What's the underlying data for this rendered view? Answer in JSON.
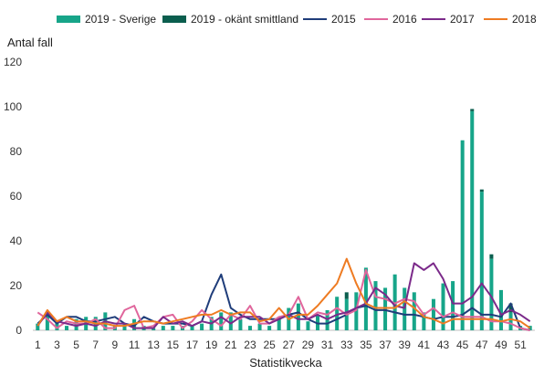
{
  "chart_data": {
    "type": "bar+line",
    "ylabel": "Antal fall",
    "xlabel": "Statistikvecka",
    "ylim": [
      0,
      120
    ],
    "yticks": [
      0,
      20,
      40,
      60,
      80,
      100,
      120
    ],
    "xticks": [
      1,
      3,
      5,
      7,
      9,
      11,
      13,
      15,
      17,
      19,
      21,
      23,
      25,
      27,
      29,
      31,
      33,
      35,
      37,
      39,
      41,
      43,
      45,
      47,
      49,
      51
    ],
    "x": [
      1,
      2,
      3,
      4,
      5,
      6,
      7,
      8,
      9,
      10,
      11,
      12,
      13,
      14,
      15,
      16,
      17,
      18,
      19,
      20,
      21,
      22,
      23,
      24,
      25,
      26,
      27,
      28,
      29,
      30,
      31,
      32,
      33,
      34,
      35,
      36,
      37,
      38,
      39,
      40,
      41,
      42,
      43,
      44,
      45,
      46,
      47,
      48,
      49,
      50,
      51,
      52
    ],
    "legend_position": "top",
    "bar_series": [
      {
        "name": "2019 - Sverige",
        "color": "#17a589",
        "values": [
          3,
          8,
          4,
          2,
          5,
          6,
          6,
          8,
          2,
          3,
          5,
          2,
          1,
          2,
          2,
          2,
          2,
          3,
          6,
          8,
          8,
          5,
          2,
          3,
          2,
          6,
          10,
          12,
          4,
          7,
          9,
          15,
          14,
          17,
          28,
          22,
          19,
          25,
          19,
          17,
          8,
          14,
          21,
          22,
          85,
          98,
          62,
          32,
          18,
          8,
          2,
          2
        ]
      },
      {
        "name": "2019 - okänt smittland",
        "color": "#0b5e4e",
        "values": [
          0,
          0,
          0,
          0,
          0,
          0,
          0,
          0,
          0,
          0,
          0,
          0,
          0,
          0,
          0,
          0,
          0,
          0,
          0,
          0,
          0,
          0,
          0,
          0,
          0,
          0,
          0,
          0,
          0,
          0,
          0,
          0,
          3,
          0,
          0,
          0,
          0,
          0,
          0,
          0,
          0,
          0,
          0,
          0,
          0,
          1,
          1,
          2,
          0,
          4,
          0,
          0
        ]
      }
    ],
    "line_series": [
      {
        "name": "2015",
        "color": "#1f3d7a",
        "values": [
          3,
          7,
          3,
          6,
          6,
          4,
          4,
          5,
          6,
          3,
          2,
          6,
          4,
          3,
          3,
          3,
          2,
          4,
          16,
          25,
          10,
          7,
          5,
          5,
          5,
          5,
          7,
          8,
          5,
          3,
          3,
          5,
          7,
          10,
          11,
          9,
          9,
          8,
          7,
          7,
          6,
          5,
          6,
          6,
          7,
          10,
          7,
          7,
          6,
          12,
          1,
          0
        ]
      },
      {
        "name": "2016",
        "color": "#e0669c",
        "values": [
          8,
          5,
          1,
          4,
          3,
          3,
          5,
          1,
          1,
          9,
          11,
          1,
          2,
          6,
          7,
          1,
          4,
          9,
          5,
          2,
          7,
          5,
          11,
          3,
          3,
          6,
          7,
          15,
          5,
          8,
          7,
          10,
          7,
          9,
          27,
          15,
          14,
          12,
          14,
          13,
          7,
          10,
          6,
          8,
          6,
          6,
          6,
          4,
          4,
          3,
          1,
          0
        ]
      },
      {
        "name": "2017",
        "color": "#7b2a8a",
        "values": [
          2,
          8,
          4,
          3,
          2,
          3,
          2,
          4,
          3,
          3,
          1,
          1,
          1,
          6,
          3,
          4,
          2,
          4,
          3,
          6,
          3,
          6,
          6,
          6,
          3,
          5,
          7,
          5,
          5,
          7,
          5,
          7,
          8,
          10,
          12,
          19,
          16,
          11,
          10,
          30,
          27,
          30,
          23,
          12,
          12,
          15,
          21,
          15,
          7,
          9,
          7,
          4
        ]
      },
      {
        "name": "2018",
        "color": "#ee7b22",
        "values": [
          2,
          9,
          4,
          6,
          4,
          4,
          3,
          3,
          2,
          2,
          3,
          4,
          4,
          3,
          4,
          5,
          6,
          7,
          7,
          9,
          7,
          8,
          8,
          4,
          5,
          10,
          5,
          7,
          7,
          11,
          16,
          21,
          32,
          21,
          12,
          10,
          10,
          10,
          13,
          10,
          6,
          5,
          3,
          5,
          5,
          5,
          5,
          5,
          4,
          5,
          4,
          1
        ]
      }
    ]
  }
}
